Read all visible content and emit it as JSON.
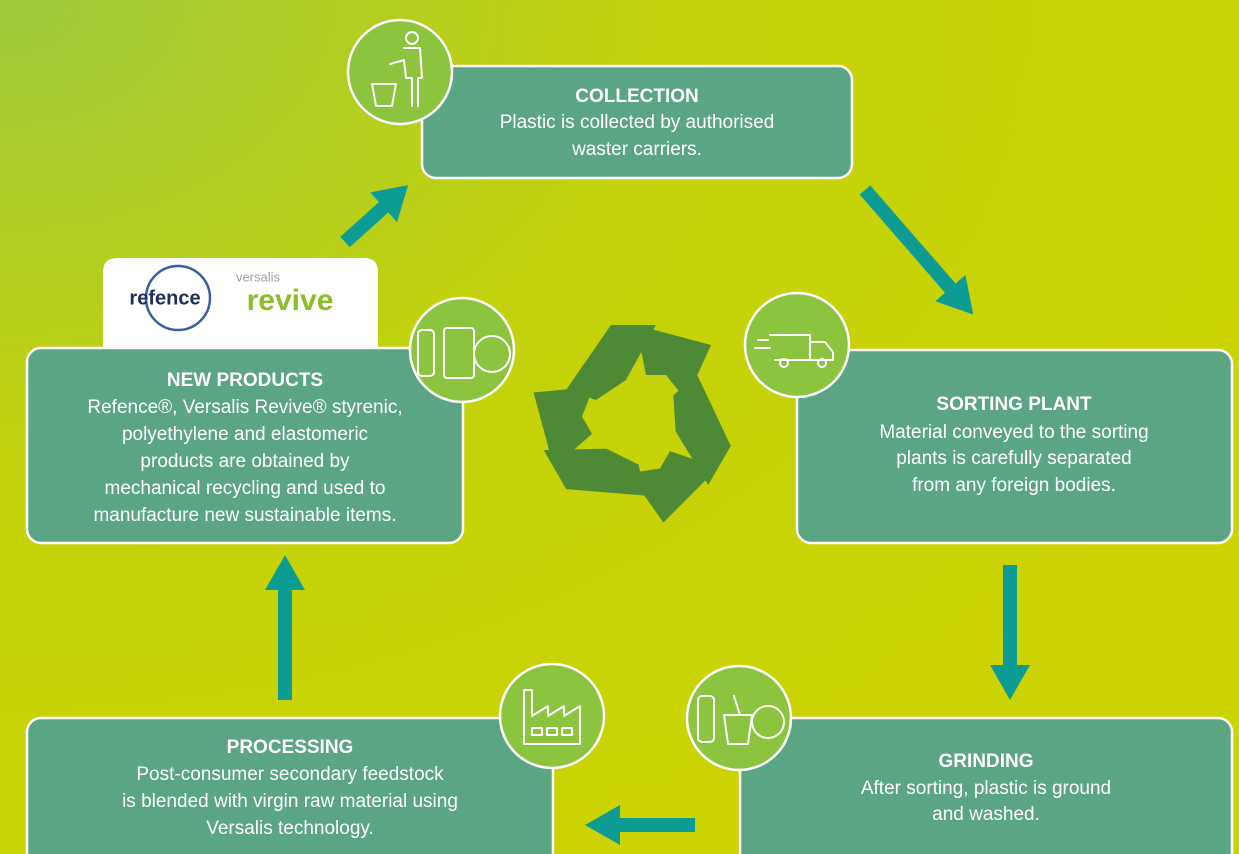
{
  "logos": {
    "left": "refence",
    "right_small": "versalis",
    "right": "revive"
  },
  "nodes": [
    {
      "title": "COLLECTION",
      "lines": [
        "Plastic is collected by authorised",
        "waster carriers."
      ]
    },
    {
      "title": "SORTING PLANT",
      "lines": [
        "Material conveyed to the sorting",
        "plants is carefully separated",
        "from any foreign bodies."
      ]
    },
    {
      "title": "GRINDING",
      "lines": [
        "After sorting, plastic is ground",
        "and washed."
      ]
    },
    {
      "title": "PROCESSING",
      "lines": [
        "Post-consumer secondary feedstock",
        "is blended with virgin raw material using",
        "Versalis technology."
      ]
    },
    {
      "title": "NEW PRODUCTS",
      "lines": [
        "Refence®, Versalis Revive® styrenic,",
        "polyethylene and elastomeric",
        "products are obtained by",
        "mechanical recycling and used to",
        "manufacture new sustainable items."
      ]
    }
  ]
}
